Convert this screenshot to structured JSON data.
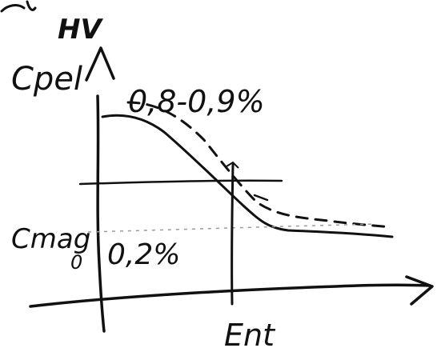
{
  "labels": {
    "top": "HV",
    "y_axis_top": "Cpel",
    "dashed_curve": "0,8-0,9%",
    "y_axis_lower": "Cmag",
    "y_axis_lower_sub": "0",
    "lower_value": "0,2%",
    "x_marker": "Ent"
  },
  "colors": {
    "ink": "#111111",
    "background": "#ffffff"
  }
}
